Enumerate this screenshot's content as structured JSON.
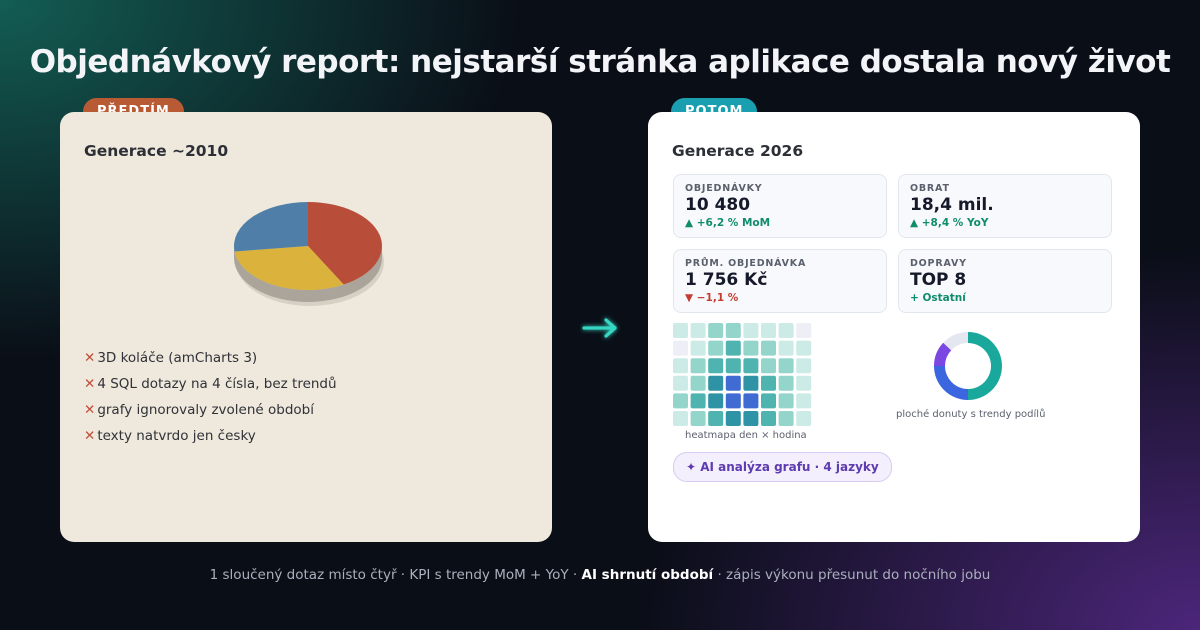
{
  "title": "Objednávkový report: nejstarší stránka aplikace dostala nový život",
  "before": {
    "badge": "PŘEDTÍM",
    "generation": "Generace ~2010",
    "pie_colors": [
      "#b84e3a",
      "#dbb33c",
      "#4f7fa8"
    ],
    "pie_values": [
      0.42,
      0.31,
      0.27
    ],
    "cons_icon": "cross-icon",
    "cons_mark": "✕",
    "cons": [
      "3D koláče (amCharts 3)",
      "4 SQL dotazy na 4 čísla, bez trendů",
      "grafy ignorovaly zvolené období",
      "texty natvrdo jen česky"
    ]
  },
  "arrow_icon": "arrow-right-icon",
  "after": {
    "badge": "POTOM",
    "generation": "Generace 2026",
    "kpis": [
      {
        "label": "OBJEDNÁVKY",
        "value": "10 480",
        "delta": "▲ +6,2 % MoM",
        "trend": "up"
      },
      {
        "label": "OBRAT",
        "value": "18,4 mil.",
        "delta": "▲ +8,4 % YoY",
        "trend": "up"
      },
      {
        "label": "PRŮM. OBJEDNÁVKA",
        "value": "1 756 Kč",
        "delta": "▼ −1,1 %",
        "trend": "down"
      },
      {
        "label": "DOPRAVY",
        "value": "TOP 8",
        "delta": "+ Ostatní",
        "trend": "up"
      }
    ],
    "heatmap": {
      "caption": "heatmapa den × hodina",
      "levels": [
        [
          1,
          1,
          2,
          2,
          1,
          1,
          1,
          0
        ],
        [
          0,
          1,
          2,
          3,
          2,
          2,
          1,
          1
        ],
        [
          1,
          2,
          3,
          3,
          3,
          2,
          2,
          1
        ],
        [
          1,
          2,
          4,
          5,
          4,
          3,
          2,
          1
        ],
        [
          2,
          3,
          4,
          5,
          5,
          3,
          2,
          1
        ],
        [
          1,
          2,
          3,
          4,
          4,
          3,
          2,
          1
        ]
      ],
      "palette": [
        "#eeeff6",
        "#cdebe6",
        "#93d5cb",
        "#4fb4af",
        "#2d93a5",
        "#3f6bd2"
      ]
    },
    "donut": {
      "caption": "ploché donuty s trendy podílů",
      "values": [
        0.5,
        0.25,
        0.12,
        0.13
      ],
      "colors": [
        "#1ba89c",
        "#3c66e0",
        "#7b46e2",
        "#e4e7f0"
      ]
    },
    "ai_badge": "✦ AI analýza grafu · 4 jazyky"
  },
  "footer": {
    "part1": "1 sloučený dotaz místo čtyř · KPI s trendy MoM + YoY · ",
    "strong": "AI shrnutí období",
    "part2": " · zápis výkonu přesunut do nočního jobu"
  }
}
